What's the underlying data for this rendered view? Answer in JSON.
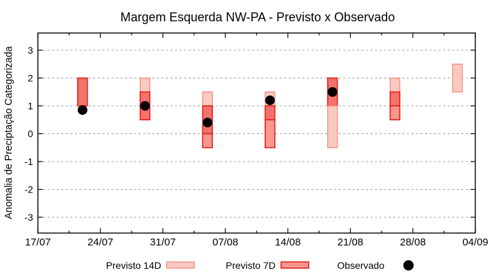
{
  "chart_data": {
    "type": "bar",
    "subtype": "range-bars-with-observed-scatter",
    "title": "Margem Esquerda NW-PA - Previsto x Observado",
    "xlabel": "",
    "ylabel": "Anomalia de Preciptação Categorizada",
    "ylim": [
      -3.6,
      3.6
    ],
    "y_ticks": [
      3,
      2,
      1,
      0,
      -1,
      -2,
      -3
    ],
    "x_ticks": [
      "17/07",
      "24/07",
      "31/07",
      "07/08",
      "14/08",
      "21/08",
      "28/08",
      "04/09"
    ],
    "x_axis": {
      "days_total": 49,
      "major_tick_days": 7,
      "minor_tick_days": 3.5
    },
    "grid": "horizontal dashed gridlines at integer y values",
    "legend_position": "below plot, horizontal",
    "legend": [
      {
        "label": "Previsto 14D",
        "tone": "light",
        "border": "light"
      },
      {
        "label": "Previsto 7D",
        "tone": "mid",
        "border": "red"
      },
      {
        "label": "Observado",
        "tone": "dot",
        "border": "none"
      }
    ],
    "clusters": [
      {
        "date": "22/07",
        "day": 5,
        "segments": [
          {
            "from": 1.0,
            "to": 2.0,
            "tone": "dark",
            "border": "red"
          }
        ],
        "observed": 0.85
      },
      {
        "date": "29/07",
        "day": 12,
        "segments": [
          {
            "from": 1.5,
            "to": 2.0,
            "tone": "light",
            "border": "light"
          },
          {
            "from": 0.5,
            "to": 1.5,
            "tone": "dark",
            "border": "red"
          }
        ],
        "observed": 1.0
      },
      {
        "date": "05/08",
        "day": 19,
        "segments": [
          {
            "from": 1.0,
            "to": 1.5,
            "tone": "light",
            "border": "light"
          },
          {
            "from": 0.0,
            "to": 1.0,
            "tone": "dark",
            "border": "red"
          },
          {
            "from": -0.5,
            "to": 0.0,
            "tone": "mid",
            "border": "red"
          }
        ],
        "observed": 0.4
      },
      {
        "date": "12/08",
        "day": 26,
        "segments": [
          {
            "from": 1.0,
            "to": 1.5,
            "tone": "light",
            "border": "light"
          },
          {
            "from": 0.5,
            "to": 1.0,
            "tone": "dark",
            "border": "red"
          },
          {
            "from": -0.5,
            "to": 0.5,
            "tone": "mid",
            "border": "red"
          }
        ],
        "observed": 1.2
      },
      {
        "date": "19/08",
        "day": 33,
        "segments": [
          {
            "from": 1.0,
            "to": 2.0,
            "tone": "dark",
            "border": "red"
          },
          {
            "from": -0.5,
            "to": 1.0,
            "tone": "light",
            "border": "light"
          }
        ],
        "observed": 1.5
      },
      {
        "date": "26/08",
        "day": 40,
        "segments": [
          {
            "from": 1.5,
            "to": 2.0,
            "tone": "light",
            "border": "light"
          },
          {
            "from": 1.0,
            "to": 1.5,
            "tone": "dark",
            "border": "red"
          },
          {
            "from": 0.5,
            "to": 1.0,
            "tone": "mid",
            "border": "red"
          }
        ],
        "observed": null
      },
      {
        "date": "02/09",
        "day": 47,
        "segments": [
          {
            "from": 1.5,
            "to": 2.5,
            "tone": "light",
            "border": "light"
          }
        ],
        "observed": null
      }
    ],
    "colors": {
      "light": "#fac9c2",
      "mid": "#f9978f",
      "dark": "#f4726c",
      "border_red": "#e5201b",
      "border_light": "#f0927f",
      "observed": "#000000",
      "grid": "#9c9c9c",
      "axis": "#000000",
      "background": "#ffffff"
    }
  }
}
